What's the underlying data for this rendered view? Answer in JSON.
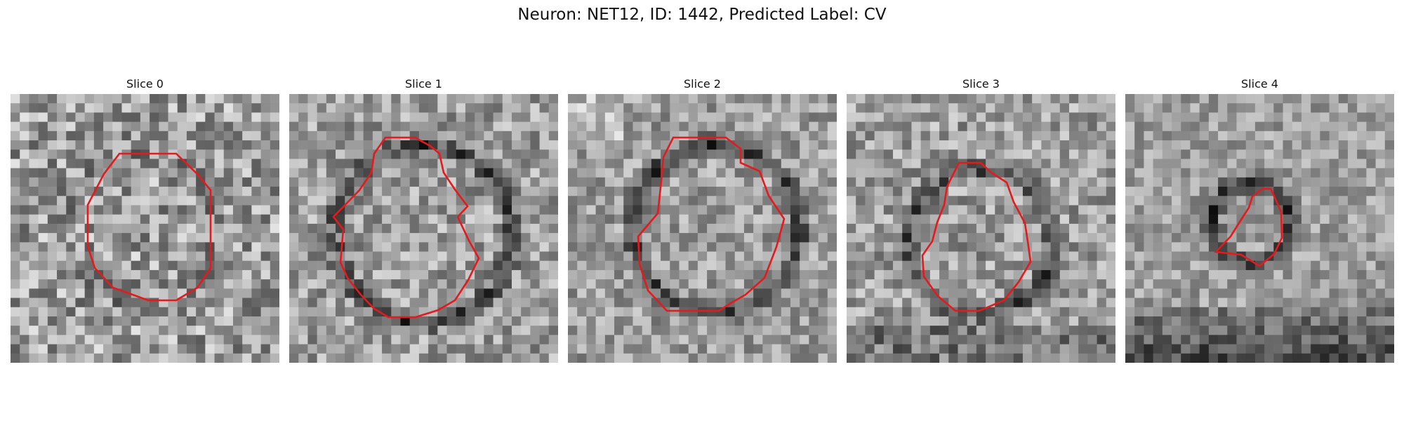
{
  "figure": {
    "title": "Neuron: NET12, ID: 1442, Predicted Label: CV"
  },
  "panels": [
    {
      "title": "Slice 0"
    },
    {
      "title": "Slice 1"
    },
    {
      "title": "Slice 2"
    },
    {
      "title": "Slice 3"
    },
    {
      "title": "Slice 4"
    }
  ],
  "contour_color": "#e41a1c"
}
